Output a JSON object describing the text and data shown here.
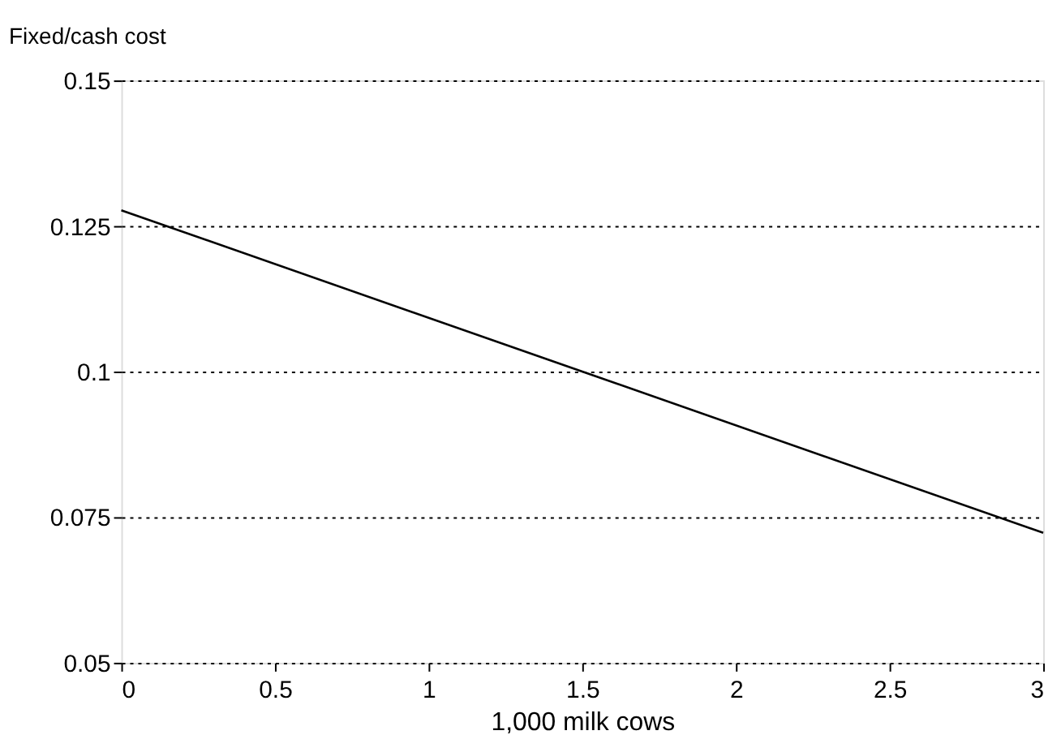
{
  "chart_data": {
    "type": "line",
    "ylabel": "Fixed/cash cost",
    "xlabel": "1,000 milk cows",
    "x": [
      0,
      1.5,
      3
    ],
    "series": [
      {
        "color": "#000000",
        "values": [
          0.1277,
          0.1,
          0.0723
        ]
      }
    ],
    "xlim": [
      0,
      3
    ],
    "xticks": [
      0,
      0.5,
      1,
      1.5,
      2,
      2.5,
      3
    ],
    "ylim": [
      0.05,
      0.15
    ],
    "yticks": [
      0.05,
      0.075,
      0.1,
      0.125,
      0.15
    ],
    "grid": "y",
    "marker": "none",
    "line_style": "solid",
    "legend": false
  }
}
